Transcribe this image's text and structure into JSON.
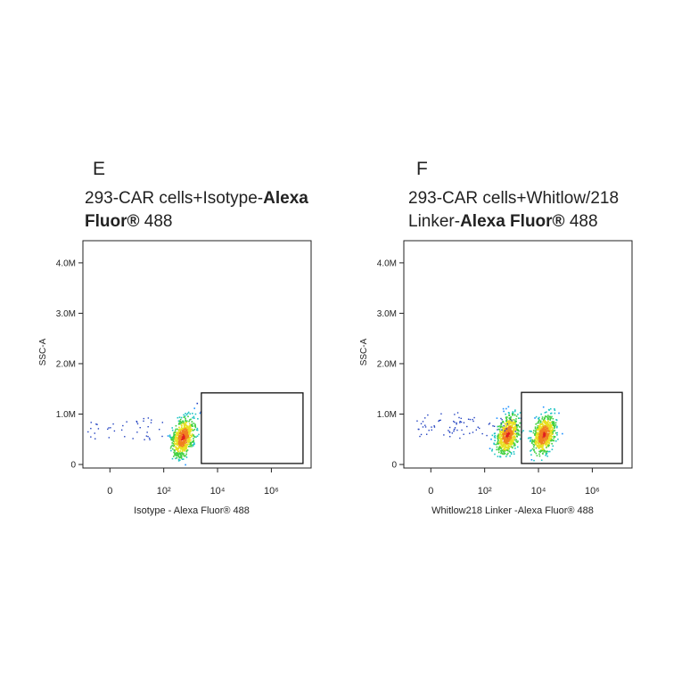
{
  "chart_data": [
    {
      "type": "scatter",
      "panel": "E",
      "title": [
        [
          {
            "text": "293-CAR  cells+Isotype-"
          },
          {
            "text": "Alexa",
            "bold": true
          }
        ],
        [
          {
            "text": "Fluor®",
            "bold": true
          },
          {
            "text": " 488"
          }
        ]
      ],
      "xlabel": "Isotype - Alexa Fluor® 488",
      "ylabel": "SSC-A",
      "xscale": "biexponential",
      "xlim": [
        -10,
        30000000
      ],
      "ylim": [
        -70000,
        4440000
      ],
      "xticks": [
        0,
        {
          "value": 100,
          "label": "10²"
        },
        {
          "value": 10000,
          "label": "10⁴"
        },
        {
          "value": 1000000,
          "label": "10⁶"
        }
      ],
      "yticks": [
        0,
        {
          "value": 1000000,
          "label": "1.0M"
        },
        {
          "value": 2000000,
          "label": "2.0M"
        },
        {
          "value": 3000000,
          "label": "3.0M"
        },
        {
          "value": 4000000,
          "label": "4.0M"
        }
      ],
      "clusters": {
        "x": [
          500
        ],
        "y": [
          550000
        ]
      },
      "gate": {
        "x": [
          2500,
          15000000
        ],
        "y": [
          20000,
          1420000
        ]
      }
    },
    {
      "type": "scatter",
      "panel": "F",
      "title": [
        [
          {
            "text": "293-CAR  cells+Whitlow/218"
          }
        ],
        [
          {
            "text": "Linker-"
          },
          {
            "text": "Alexa Fluor®",
            "bold": true
          },
          {
            "text": " 488"
          }
        ]
      ],
      "xlabel": "Whitlow218 Linker -Alexa Fluor® 488",
      "ylabel": "SSC-A",
      "xscale": "biexponential",
      "xlim": [
        -10,
        30000000
      ],
      "ylim": [
        -70000,
        4440000
      ],
      "xticks": [
        0,
        {
          "value": 100,
          "label": "10²"
        },
        {
          "value": 10000,
          "label": "10⁴"
        },
        {
          "value": 1000000,
          "label": "10⁶"
        }
      ],
      "yticks": [
        0,
        {
          "value": 1000000,
          "label": "1.0M"
        },
        {
          "value": 2000000,
          "label": "2.0M"
        },
        {
          "value": 3000000,
          "label": "3.0M"
        },
        {
          "value": 4000000,
          "label": "4.0M"
        }
      ],
      "clusters": {
        "x": [
          680,
          15000
        ],
        "y": [
          600000,
          600000
        ]
      },
      "gate": {
        "x": [
          2330,
          13000000
        ],
        "y": [
          20000,
          1430000
        ]
      }
    }
  ]
}
